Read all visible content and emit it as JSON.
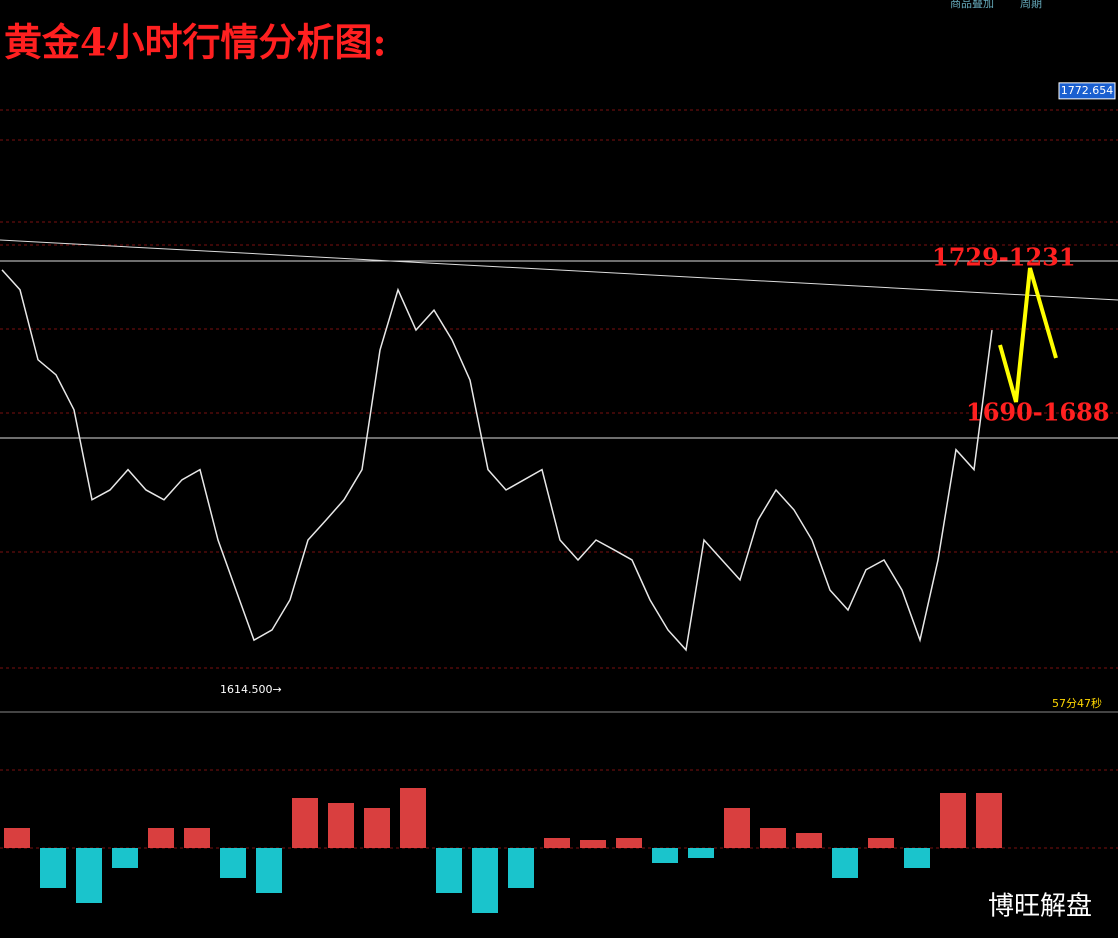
{
  "chart_data": [
    {
      "type": "line",
      "title": "黄金4小时行情分析图:",
      "color": "#e8e8e8",
      "values": [
        1725.1,
        1719.8,
        1701.2,
        1697.2,
        1687.9,
        1664.0,
        1666.6,
        1672.0,
        1666.6,
        1664.0,
        1669.3,
        1672.0,
        1653.3,
        1640.0,
        1626.7,
        1629.4,
        1637.4,
        1653.3,
        1658.6,
        1664.0,
        1672.0,
        1703.8,
        1719.8,
        1709.1,
        1714.4,
        1706.5,
        1695.8,
        1672.0,
        1666.6,
        1669.3,
        1672.0,
        1653.3,
        1648.0,
        1653.3,
        1650.7,
        1648.0,
        1637.4,
        1629.4,
        1624.1,
        1653.3,
        1648.0,
        1642.7,
        1658.6,
        1666.6,
        1661.3,
        1653.3,
        1640.0,
        1634.7,
        1645.4,
        1648.0,
        1640.0,
        1626.7,
        1648.0,
        1677.3,
        1672.0,
        1709.1
      ],
      "ylim": [
        1607.6,
        1796.8
      ],
      "current_price": 1772.654,
      "low": {
        "value": 1614.5,
        "label": "1614.500→"
      },
      "annotations": [
        "1729-1231",
        "1690-1688"
      ],
      "timer": "57分47秒",
      "watermark": "博旺解盘",
      "toolbar": [
        "商品叠加",
        "周期"
      ]
    },
    {
      "type": "bar",
      "up_color": "#ff4a4a",
      "down_color": "#1ee6f0",
      "values": [
        20,
        -40,
        -55,
        -20,
        20,
        20,
        -30,
        -45,
        50,
        45,
        40,
        60,
        -45,
        -65,
        -40,
        10,
        8,
        10,
        -15,
        -10,
        40,
        20,
        15,
        -30,
        10,
        -20,
        55,
        55
      ],
      "ylim": [
        -86,
        136
      ]
    }
  ]
}
